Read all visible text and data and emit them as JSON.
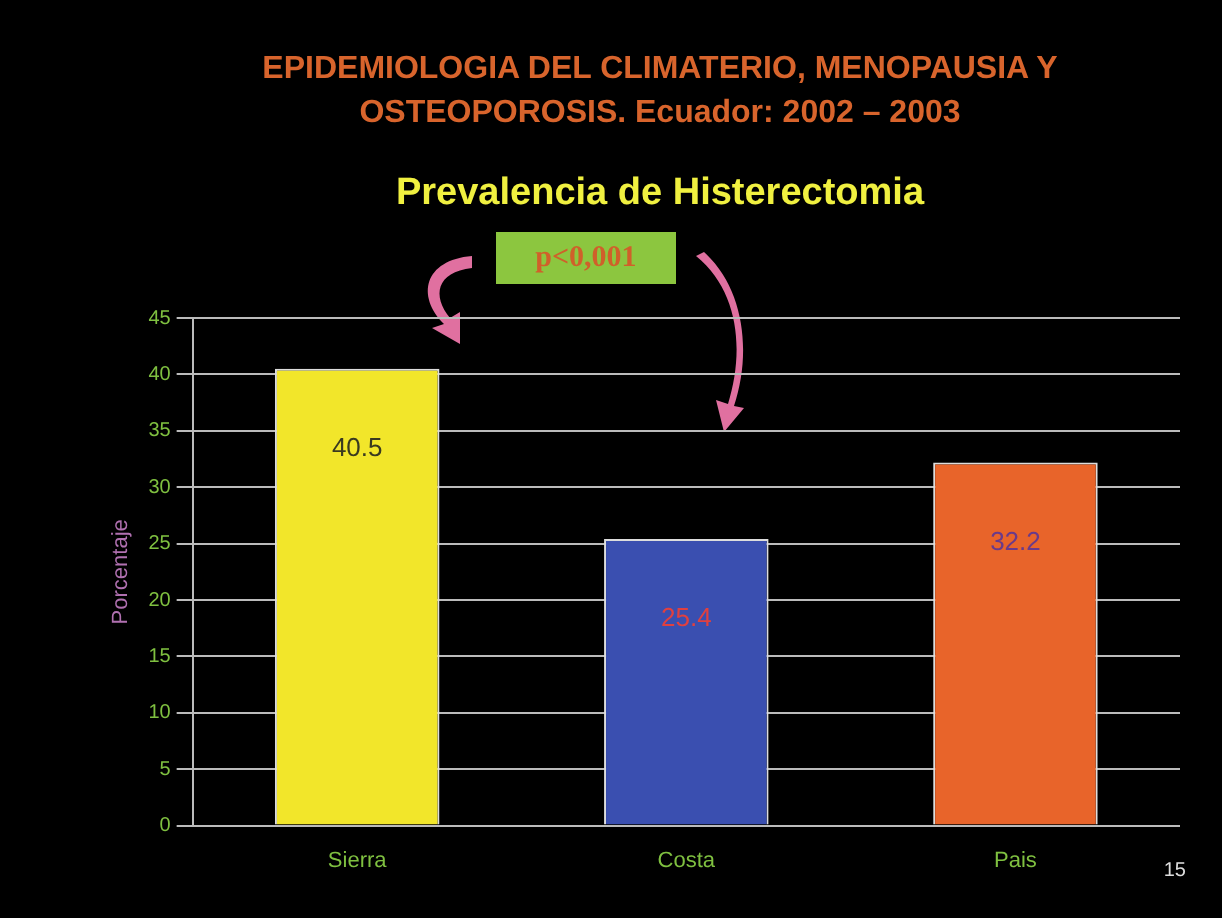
{
  "chart_data": {
    "type": "bar",
    "title": "EPIDEMIOLOGIA DEL CLIMATERIO, MENOPAUSIA Y OSTEOPOROSIS. Ecuador: 2002 – 2003",
    "subtitle": "Prevalencia de Histerectomia",
    "ylabel": "Porcentaje",
    "categories": [
      "Sierra",
      "Costa",
      "Pais"
    ],
    "values": [
      40.5,
      25.4,
      32.2
    ],
    "colors": [
      "#f2e62a",
      "#3a4fb0",
      "#e8642a"
    ],
    "ylim": [
      0,
      45
    ],
    "yticks": [
      0,
      5,
      10,
      15,
      20,
      25,
      30,
      35,
      40,
      45
    ],
    "grid": "y",
    "data_labels": true,
    "annotations": [
      "p<0,001",
      "15"
    ]
  }
}
